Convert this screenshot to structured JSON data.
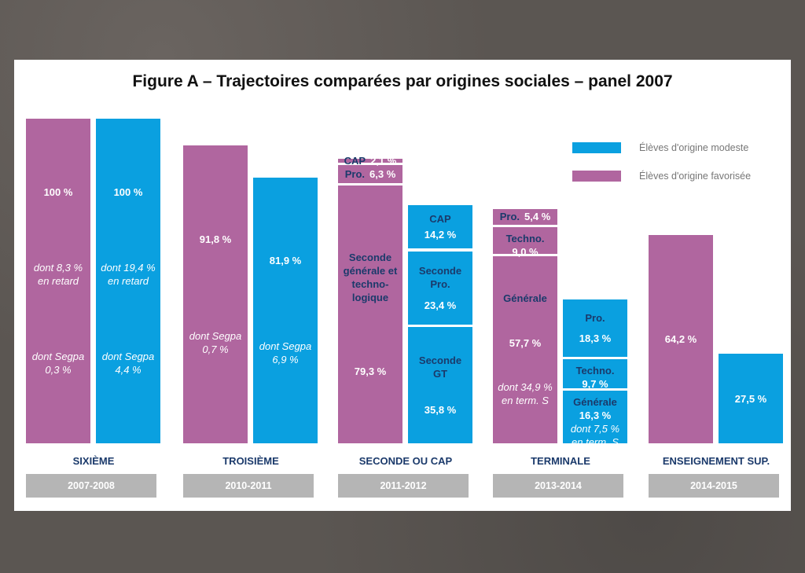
{
  "title": "Figure A – Trajectoires comparées par origines sociales – panel 2007",
  "colors": {
    "modeste": "#0aa0e0",
    "favorisee": "#b0669f",
    "label": "#1b3a6b"
  },
  "legend": [
    {
      "label": "Élèves d'origine modeste",
      "color": "#0aa0e0"
    },
    {
      "label": "Élèves d'origine favorisée",
      "color": "#b0669f"
    }
  ],
  "chart_data": {
    "type": "bar",
    "title": "Figure A – Trajectoires comparées par origines sociales – panel 2007",
    "ylim": [
      0,
      100
    ],
    "unit": "%",
    "groups": [
      {
        "category": "SIXIÈME",
        "year": "2007-2008",
        "favorisee": [
          {
            "value": 100,
            "texts": [
              {
                "t": "val",
                "s": "100 %"
              },
              {
                "t": "note",
                "s": "dont 8,3 % en retard"
              },
              {
                "t": "note",
                "s": "dont Segpa 0,3 %"
              }
            ]
          }
        ],
        "modeste": [
          {
            "value": 100,
            "texts": [
              {
                "t": "val",
                "s": "100 %"
              },
              {
                "t": "note",
                "s": "dont 19,4 % en retard"
              },
              {
                "t": "note",
                "s": "dont Segpa 4,4 %"
              }
            ]
          }
        ]
      },
      {
        "category": "TROISIÈME",
        "year": "2010-2011",
        "favorisee": [
          {
            "value": 91.8,
            "texts": [
              {
                "t": "val",
                "s": "91,8 %"
              },
              {
                "t": "note",
                "s": "dont Segpa 0,7 %"
              }
            ]
          }
        ],
        "modeste": [
          {
            "value": 81.9,
            "texts": [
              {
                "t": "val",
                "s": "81,9 %"
              },
              {
                "t": "note",
                "s": "dont Segpa 6,9 %"
              }
            ]
          }
        ]
      },
      {
        "category": "SECONDE OU CAP",
        "year": "2011-2012",
        "favorisee": [
          {
            "value": 79.3,
            "texts": [
              {
                "t": "lbl",
                "s": "Seconde générale et techno-logique"
              },
              {
                "t": "val",
                "s": "79,3 %"
              }
            ]
          },
          {
            "value": 6.3,
            "row": true,
            "texts": [
              {
                "t": "lbl",
                "s": "Pro."
              },
              {
                "t": "val",
                "s": "6,3 %"
              }
            ]
          },
          {
            "value": 2.1,
            "row": true,
            "texts": [
              {
                "t": "lbl",
                "s": "CAP"
              },
              {
                "t": "val",
                "s": "2,1 %"
              }
            ]
          }
        ],
        "modeste": [
          {
            "value": 35.8,
            "texts": [
              {
                "t": "lbl",
                "s": "Seconde GT"
              },
              {
                "t": "val",
                "s": "35,8 %"
              }
            ]
          },
          {
            "value": 23.4,
            "texts": [
              {
                "t": "lbl",
                "s": "Seconde Pro."
              },
              {
                "t": "val",
                "s": "23,4 %"
              }
            ]
          },
          {
            "value": 14.2,
            "texts": [
              {
                "t": "lbl",
                "s": "CAP"
              },
              {
                "t": "val",
                "s": "14,2 %"
              }
            ]
          }
        ]
      },
      {
        "category": "TERMINALE",
        "year": "2013-2014",
        "favorisee": [
          {
            "value": 57.7,
            "texts": [
              {
                "t": "lbl",
                "s": "Générale"
              },
              {
                "t": "val",
                "s": "57,7 %"
              },
              {
                "t": "note",
                "s": "dont 34,9 % en term. S"
              }
            ]
          },
          {
            "value": 9.0,
            "texts": [
              {
                "t": "lbl",
                "s": "Techno."
              },
              {
                "t": "val",
                "s": "9,0 %"
              }
            ]
          },
          {
            "value": 5.4,
            "row": true,
            "texts": [
              {
                "t": "lbl",
                "s": "Pro."
              },
              {
                "t": "val",
                "s": "5,4 %"
              }
            ]
          }
        ],
        "modeste": [
          {
            "value": 16.3,
            "texts": [
              {
                "t": "lbl",
                "s": "Générale"
              },
              {
                "t": "val",
                "s": "16,3 %"
              },
              {
                "t": "note",
                "s": "dont 7,5 % en term. S"
              }
            ]
          },
          {
            "value": 9.7,
            "texts": [
              {
                "t": "lbl",
                "s": "Techno."
              },
              {
                "t": "val",
                "s": "9,7 %"
              }
            ]
          },
          {
            "value": 18.3,
            "texts": [
              {
                "t": "lbl",
                "s": "Pro."
              },
              {
                "t": "val",
                "s": "18,3 %"
              }
            ]
          }
        ]
      },
      {
        "category": "ENSEIGNEMENT SUP.",
        "year": "2014-2015",
        "favorisee": [
          {
            "value": 64.2,
            "texts": [
              {
                "t": "val",
                "s": "64,2 %"
              }
            ]
          }
        ],
        "modeste": [
          {
            "value": 27.5,
            "texts": [
              {
                "t": "val",
                "s": "27,5 %"
              }
            ]
          }
        ]
      }
    ]
  }
}
